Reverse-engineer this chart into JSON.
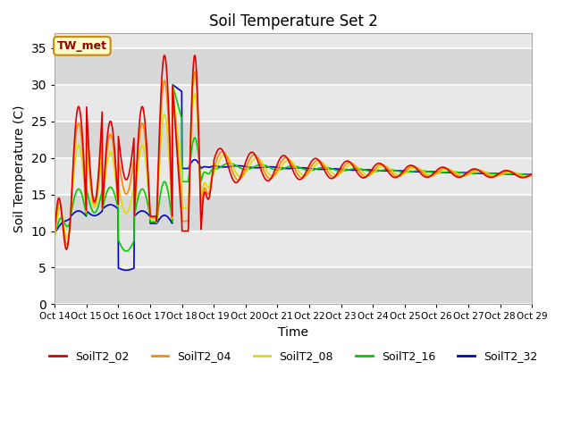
{
  "title": "Soil Temperature Set 2",
  "xlabel": "Time",
  "ylabel": "Soil Temperature (C)",
  "ylim": [
    0,
    37
  ],
  "yticks": [
    0,
    5,
    10,
    15,
    20,
    25,
    30,
    35
  ],
  "plot_bg_color": "#e8e8e8",
  "annotation_text": "TW_met",
  "annotation_color": "#990000",
  "annotation_bg": "#ffffcc",
  "annotation_border": "#cc8800",
  "series_colors": {
    "SoilT2_02": "#dd0000",
    "SoilT2_04": "#ff8800",
    "SoilT2_08": "#dddd00",
    "SoilT2_16": "#00cc00",
    "SoilT2_32": "#0000cc"
  },
  "xtick_labels": [
    "Oct 14",
    "Oct 15",
    "Oct 16",
    "Oct 17",
    "Oct 18",
    "Oct 19",
    "Oct 20",
    "Oct 21",
    "Oct 22",
    "Oct 23",
    "Oct 24",
    "Oct 25",
    "Oct 26",
    "Oct 27",
    "Oct 28",
    "Oct 29"
  ]
}
